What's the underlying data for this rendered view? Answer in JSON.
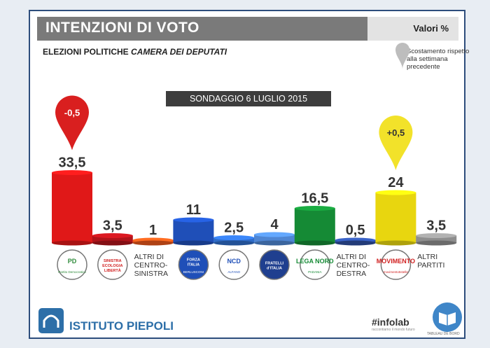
{
  "header": {
    "title": "INTENZIONI DI VOTO",
    "units": "Valori %"
  },
  "subtitle": {
    "main": "ELEZIONI POLITICHE",
    "italic": "CAMERA DEI DEPUTATI"
  },
  "legend_note": "Scostamento rispetto alla settimana precedente",
  "survey_date": "SONDAGGIO 6 LUGLIO 2015",
  "footer": {
    "institute": "ISTITUTO PIEPOLI",
    "infolab": "#infolab",
    "infolab_tagline": "raccontiamo il mondo futuro",
    "tableau": "TABLEAU DE BORD"
  },
  "chart_data": {
    "type": "bar",
    "title": "INTENZIONI DI VOTO",
    "ylabel": "Valori %",
    "categories": [
      "PD",
      "SEL",
      "ALTRI DI CENTRO-SINISTRA",
      "FORZA ITALIA",
      "NCD",
      "FRATELLI D'ITALIA",
      "LEGA NORD",
      "ALTRI DI CENTRO-DESTRA",
      "M5S",
      "ALTRI PARTITI"
    ],
    "values": [
      33.5,
      3.5,
      1,
      11,
      2.5,
      4,
      16.5,
      0.5,
      24,
      3.5
    ],
    "value_labels": [
      "33,5",
      "3,5",
      "1",
      "11",
      "2,5",
      "4",
      "16,5",
      "0,5",
      "24",
      "3,5"
    ],
    "changes": [
      {
        "index": 0,
        "label": "-0,5",
        "color": "#d91f1f"
      },
      {
        "index": 8,
        "label": "+0,5",
        "color": "#f2e22a"
      }
    ],
    "colors": [
      "#e01818",
      "#b0141a",
      "#e8561a",
      "#1f4fb8",
      "#2f6cc8",
      "#4f86d3",
      "#158a35",
      "#2e4fa0",
      "#e8d60f",
      "#8e8e8e"
    ],
    "text_labels": {
      "2": [
        "ALTRI DI",
        "CENTRO-",
        "SINISTRA"
      ],
      "7": [
        "ALTRI DI",
        "CENTRO-",
        "DESTRA"
      ],
      "9": [
        "ALTRI",
        "PARTITI"
      ]
    },
    "logos": {
      "0": {
        "text": "PD",
        "sub": "Partito Democratico",
        "bg": "#ffffff",
        "fg": "#2e8b3a"
      },
      "1": {
        "text": "SINISTRA ECOLOGIA LIBERTÀ",
        "bg": "#ffffff",
        "fg": "#d01f1f"
      },
      "3": {
        "text": "FORZA ITALIA",
        "sub": "BERLUSCONI",
        "bg": "#1f4fb8",
        "fg": "#ffffff"
      },
      "4": {
        "text": "NCD",
        "sub": "ALFANO",
        "bg": "#ffffff",
        "fg": "#1f4fb8"
      },
      "5": {
        "text": "FRATELLI d'ITALIA",
        "bg": "#1f3f8f",
        "fg": "#ffffff"
      },
      "6": {
        "text": "LEGA NORD",
        "sub": "PADANIA",
        "bg": "#ffffff",
        "fg": "#158a35"
      },
      "8": {
        "text": "MOVIMENTO",
        "sub": "movimento5stelle",
        "bg": "#ffffff",
        "fg": "#d01f1f"
      }
    }
  }
}
